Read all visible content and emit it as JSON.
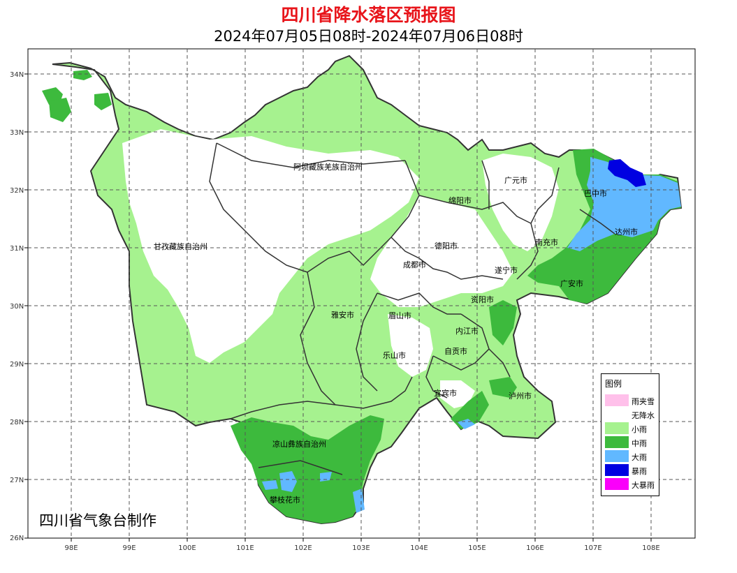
{
  "title": "四川省降水落区预报图",
  "subtitle": "2024年07月05日08时-2024年07月06日08时",
  "credit": "四川省气象台制作",
  "axes": {
    "lat_labels": [
      "34N",
      "33N",
      "32N",
      "31N",
      "30N",
      "29N",
      "28N",
      "27N",
      "26N"
    ],
    "lon_labels": [
      "98E",
      "99E",
      "100E",
      "101E",
      "102E",
      "103E",
      "104E",
      "105E",
      "106E",
      "107E",
      "108E"
    ],
    "grid": "dashed"
  },
  "regions": {
    "aba": "阿坝藏族羌族自治州",
    "ganzi": "甘孜藏族自治州",
    "liangshan": "凉山彝族自治州",
    "guangyuan": "广元市",
    "bazhong": "巴中市",
    "mianyang": "绵阳市",
    "dazhou": "达州市",
    "nanchong": "南充市",
    "deyang": "德阳市",
    "chengdu": "成都市",
    "suining": "遂宁市",
    "guangan": "广安市",
    "ziyang": "资阳市",
    "yaan": "雅安市",
    "meishan": "眉山市",
    "neijiang": "内江市",
    "zigong": "自贡市",
    "leshan": "乐山市",
    "yibin": "宜宾市",
    "luzhou": "泸州市",
    "panzhihua": "攀枝花市"
  },
  "legend": {
    "title": "图例",
    "items": [
      {
        "label": "雨夹雪",
        "color": "#ffc0ea"
      },
      {
        "label": "无降水",
        "color": "#ffffff"
      },
      {
        "label": "小雨",
        "color": "#a6f28f"
      },
      {
        "label": "中雨",
        "color": "#3dba3d"
      },
      {
        "label": "大雨",
        "color": "#61b8ff"
      },
      {
        "label": "暴雨",
        "color": "#0000e1"
      },
      {
        "label": "大暴雨",
        "color": "#fa00fa"
      }
    ]
  },
  "colors": {
    "light_rain": "#a6f28f",
    "moderate_rain": "#3dba3d",
    "heavy_rain": "#61b8ff",
    "rainstorm": "#0000e1",
    "title_red": "#e8141a",
    "border": "#333333"
  }
}
